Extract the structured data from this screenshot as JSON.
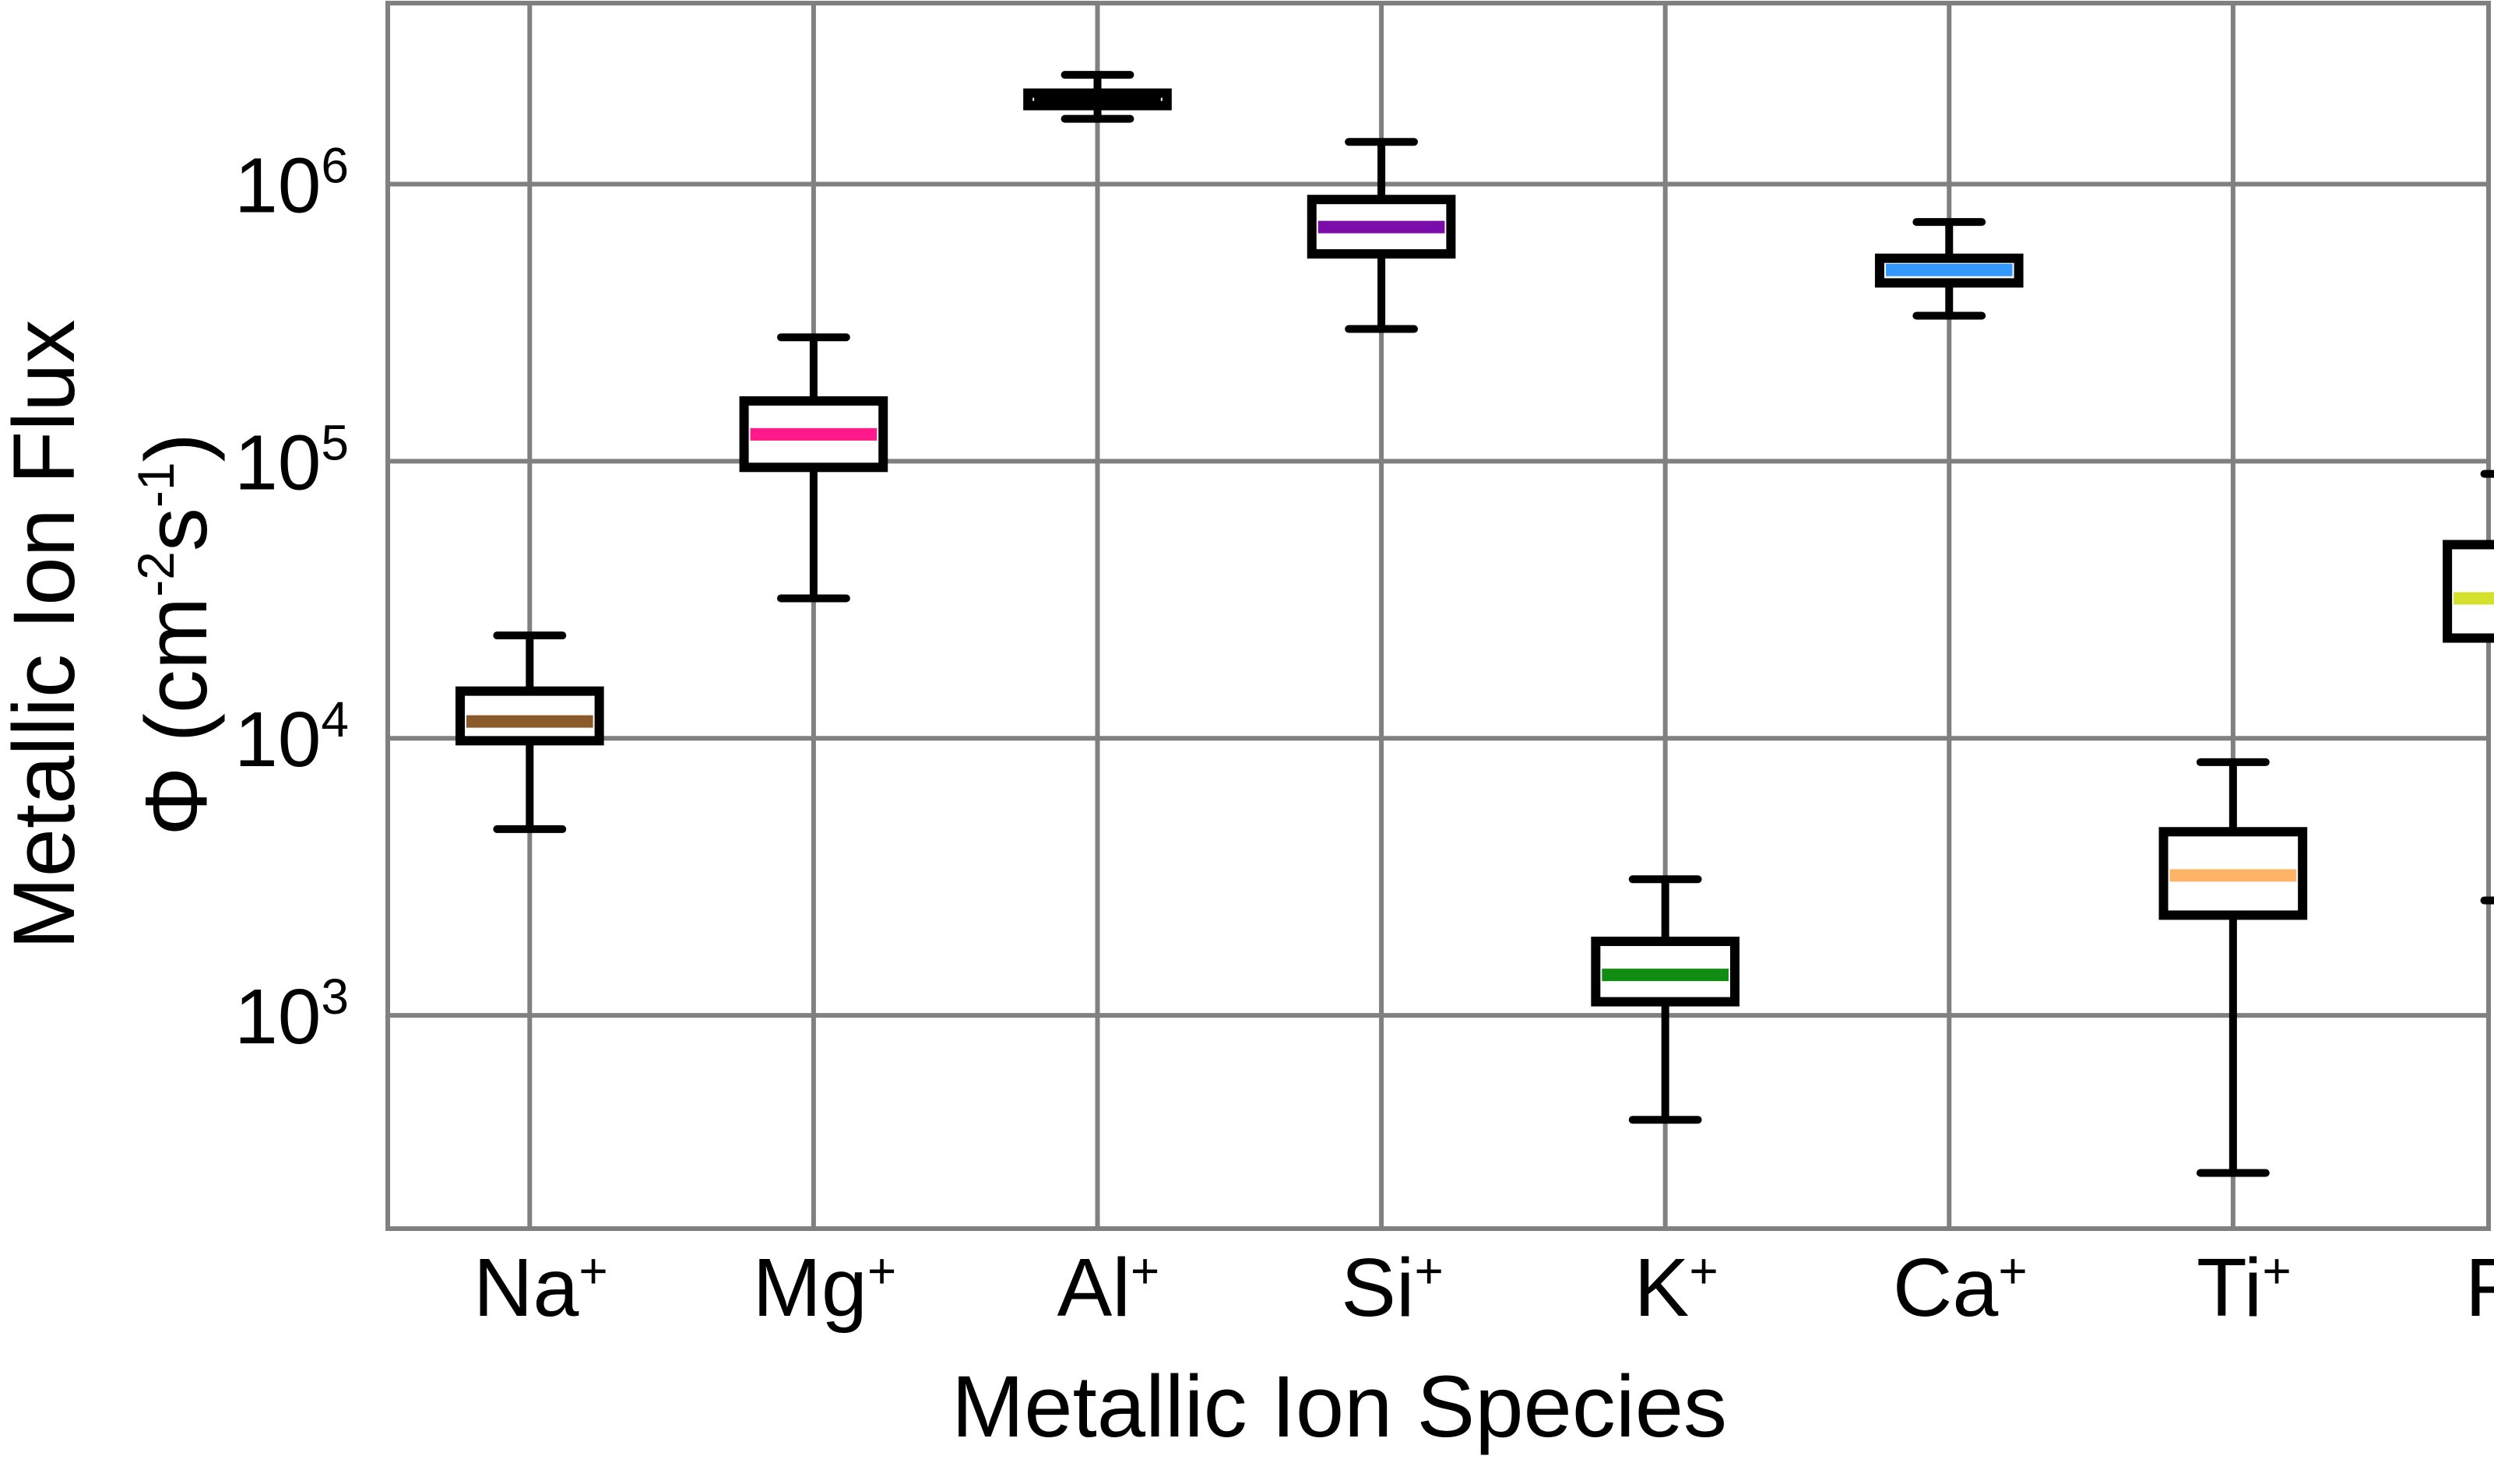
{
  "chart_data": {
    "type": "box",
    "xlabel": "Metallic Ion Species",
    "ylabel_line1": "Metallic Ion Flux",
    "ylabel_line2_parts": [
      "Φ (cm",
      "-2",
      "s",
      "-1",
      ")"
    ],
    "yscale": "log",
    "ylim": [
      170,
      4500000
    ],
    "yticks": [
      {
        "value": 1000,
        "base": "10",
        "exp": "3"
      },
      {
        "value": 10000,
        "base": "10",
        "exp": "4"
      },
      {
        "value": 100000,
        "base": "10",
        "exp": "5"
      },
      {
        "value": 1000000,
        "base": "10",
        "exp": "6"
      }
    ],
    "grid": true,
    "series": [
      {
        "symbol": "Na",
        "charge": "+",
        "min": 4700,
        "q1": 9800,
        "median": 11500,
        "q3": 14800,
        "max": 23500,
        "color": "#8B5A2B"
      },
      {
        "symbol": "Mg",
        "charge": "+",
        "min": 32000,
        "q1": 95000,
        "median": 125000,
        "q3": 165000,
        "max": 280000,
        "color": "#FF1A8C"
      },
      {
        "symbol": "Al",
        "charge": "+",
        "min": 1720000,
        "q1": 1920000,
        "median": 2020000,
        "q3": 2130000,
        "max": 2480000,
        "color": "#000000"
      },
      {
        "symbol": "Si",
        "charge": "+",
        "min": 300000,
        "q1": 560000,
        "median": 700000,
        "q3": 880000,
        "max": 1420000,
        "color": "#7B0EAA"
      },
      {
        "symbol": "K",
        "charge": "+",
        "min": 420,
        "q1": 1120,
        "median": 1400,
        "q3": 1850,
        "max": 3100,
        "color": "#128C12"
      },
      {
        "symbol": "Ca",
        "charge": "+",
        "min": 335000,
        "q1": 440000,
        "median": 490000,
        "q3": 540000,
        "max": 730000,
        "color": "#3399FF"
      },
      {
        "symbol": "Ti",
        "charge": "+",
        "min": 270,
        "q1": 2300,
        "median": 3200,
        "q3": 4600,
        "max": 8200,
        "color": "#FFB366"
      },
      {
        "symbol": "Fe",
        "charge": "+",
        "min": 2600,
        "q1": 23000,
        "median": 32000,
        "q3": 50000,
        "max": 90000,
        "color": "#D4E02B"
      }
    ]
  }
}
